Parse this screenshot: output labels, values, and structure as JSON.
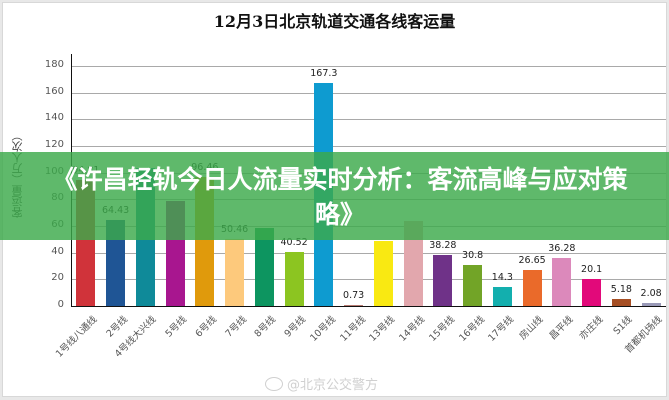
{
  "chart_data": {
    "type": "bar",
    "title": "12月3日北京轨道交通各线客运量",
    "xlabel": "",
    "ylabel": "客运量（万人次）",
    "ylim": [
      0,
      180
    ],
    "yticks": [
      0,
      20,
      40,
      60,
      80,
      100,
      120,
      140,
      160,
      180
    ],
    "grid": true,
    "legend": "none",
    "categories": [
      "1号线八通线",
      "2号线",
      "4号线大兴线",
      "5号线",
      "6号线",
      "7号线",
      "8号线",
      "9号线",
      "10号线",
      "11号线",
      "13号线",
      "14号线",
      "15号线",
      "16号线",
      "17号线",
      "房山线",
      "昌平线",
      "亦庄线",
      "S1线",
      "首都机场线"
    ],
    "values": [
      94.81,
      64.43,
      103.5,
      79.0,
      96.46,
      50.46,
      58.5,
      40.52,
      167.3,
      0.73,
      49.0,
      64.0,
      38.28,
      30.8,
      14.3,
      26.65,
      36.28,
      20.1,
      5.18,
      2.08
    ],
    "value_labels": [
      "94.81",
      "64.43",
      "",
      "",
      "96.46",
      "50.46",
      "",
      "40.52",
      "167.3",
      "0.73",
      "",
      "",
      "38.28",
      "30.8",
      "14.3",
      "26.65",
      "36.28",
      "20.1",
      "5.18",
      "2.08"
    ],
    "colors": [
      "#d0333a",
      "#1f5595",
      "#0f8a99",
      "#a8168f",
      "#e09a0c",
      "#fdc97c",
      "#0d9560",
      "#8cc521",
      "#0e9bd0",
      "#b87c73",
      "#f9e912",
      "#e2a7ad",
      "#6f3288",
      "#72a427",
      "#13afae",
      "#ea6a2a",
      "#dc89bb",
      "#e2097a",
      "#a64f24",
      "#9999b7"
    ]
  },
  "overlay": {
    "headline": "《许昌轻轨今日人流量实时分析：客流高峰与应对策略》"
  },
  "watermark": {
    "text": "@北京公交警方"
  }
}
